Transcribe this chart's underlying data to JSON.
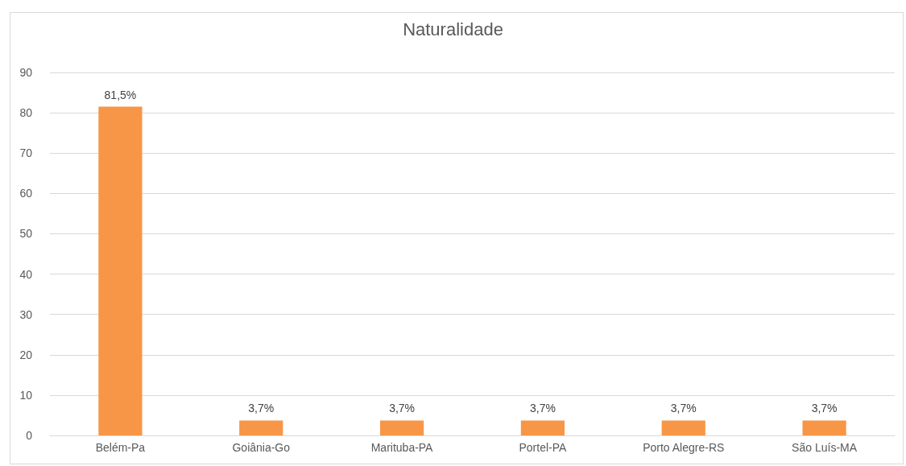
{
  "chart_data": {
    "type": "bar",
    "title": "Naturalidade",
    "categories": [
      "Belém-Pa",
      "Goiânia-Go",
      "Marituba-PA",
      "Portel-PA",
      "Porto Alegre-RS",
      "São Luís-MA"
    ],
    "values": [
      81.5,
      3.7,
      3.7,
      3.7,
      3.7,
      3.7
    ],
    "value_labels": [
      "81,5%",
      "3,7%",
      "3,7%",
      "3,7%",
      "3,7%",
      "3,7%"
    ],
    "color": "#f79646",
    "ylim": [
      0,
      90
    ],
    "yticks": [
      0,
      10,
      20,
      30,
      40,
      50,
      60,
      70,
      80,
      90
    ],
    "grid": "y"
  }
}
